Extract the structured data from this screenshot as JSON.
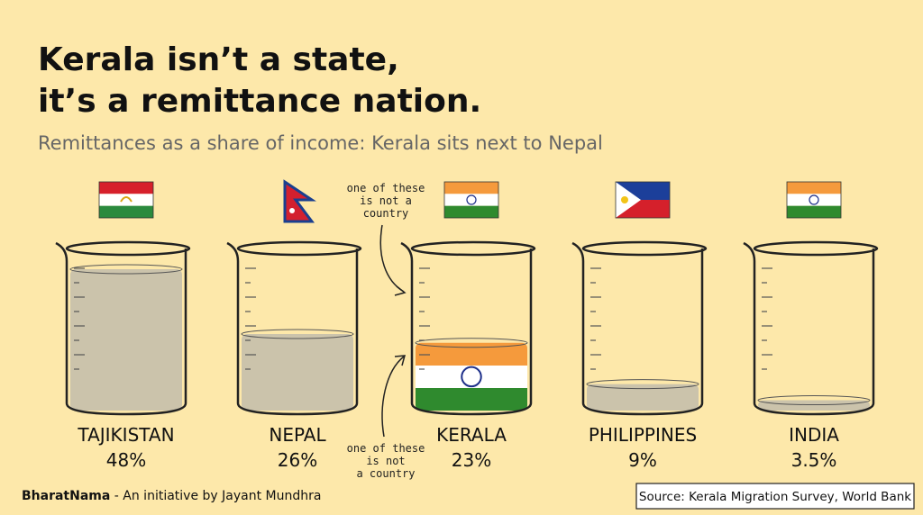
{
  "chart_data": {
    "type": "beaker",
    "title": [
      "Kerala isn’t a state,",
      "it’s a remittance nation."
    ],
    "subtitle": "Remittances as a share of income: Kerala sits next to Nepal",
    "categories": [
      "TAJIKISTAN",
      "NEPAL",
      "KERALA",
      "PHILIPPINES",
      "INDIA"
    ],
    "values": [
      48,
      26,
      23,
      9,
      3.5
    ],
    "value_labels": [
      "48%",
      "26%",
      "23%",
      "9%",
      "3.5%"
    ],
    "color": "#cbc3ab",
    "annotations": [
      [
        "one of these",
        "is not a",
        "country"
      ],
      [
        "one of these",
        "is not",
        "a country"
      ]
    ],
    "footer": {
      "brand": "BharatNama",
      "text": " - An initiative by Jayant Mundhra"
    },
    "source": "Source: Kerala Migration Survey, World Bank"
  }
}
